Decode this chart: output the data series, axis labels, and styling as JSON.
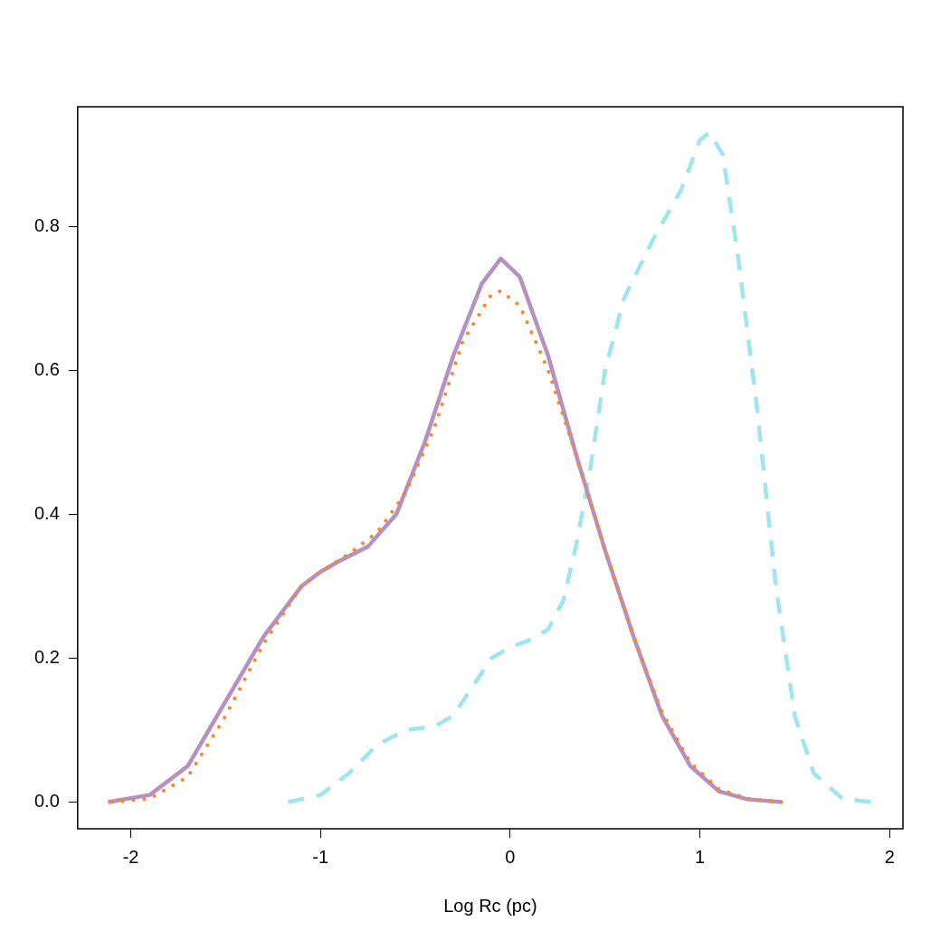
{
  "chart_data": {
    "type": "line",
    "xlabel": "Log Rc (pc)",
    "xlim": [
      -2.28,
      2.07
    ],
    "ylim": [
      -0.037,
      0.966
    ],
    "xticks": [
      -2,
      -1,
      0,
      1,
      2
    ],
    "yticks": [
      {
        "value": 0,
        "label": "0.0"
      },
      {
        "value": 0.2,
        "label": "0.2"
      },
      {
        "value": 0.4,
        "label": "0.4"
      },
      {
        "value": 0.6,
        "label": "0.6"
      },
      {
        "value": 0.8,
        "label": "0.8"
      }
    ],
    "grid": false,
    "legend": false,
    "marker": "none",
    "series": [
      {
        "color": "#f5872e",
        "line_style": "dotted",
        "x": [
          -2.1,
          -1.9,
          -1.7,
          -1.5,
          -1.3,
          -1.1,
          -1.0,
          -0.85,
          -0.7,
          -0.55,
          -0.4,
          -0.25,
          -0.1,
          -0.05,
          0.05,
          0.2,
          0.35,
          0.5,
          0.65,
          0.8,
          0.95,
          1.1,
          1.25,
          1.43
        ],
        "values": [
          0,
          0.005,
          0.035,
          0.12,
          0.22,
          0.3,
          0.32,
          0.345,
          0.375,
          0.43,
          0.52,
          0.64,
          0.705,
          0.71,
          0.69,
          0.6,
          0.48,
          0.35,
          0.23,
          0.125,
          0.055,
          0.018,
          0.005,
          0
        ]
      },
      {
        "color": "#b491c1",
        "line_style": "solid",
        "x": [
          -2.12,
          -1.9,
          -1.7,
          -1.5,
          -1.3,
          -1.1,
          -1.0,
          -0.9,
          -0.75,
          -0.6,
          -0.45,
          -0.3,
          -0.15,
          -0.05,
          0.05,
          0.2,
          0.35,
          0.5,
          0.65,
          0.8,
          0.95,
          1.1,
          1.25,
          1.43
        ],
        "values": [
          0,
          0.01,
          0.05,
          0.14,
          0.23,
          0.3,
          0.32,
          0.335,
          0.355,
          0.4,
          0.5,
          0.62,
          0.72,
          0.755,
          0.73,
          0.62,
          0.48,
          0.35,
          0.23,
          0.12,
          0.05,
          0.015,
          0.004,
          0
        ]
      },
      {
        "color": "#9fe5ef",
        "line_style": "dashed",
        "x": [
          -1.17,
          -1.0,
          -0.85,
          -0.7,
          -0.55,
          -0.4,
          -0.3,
          -0.2,
          -0.1,
          0,
          0.1,
          0.2,
          0.28,
          0.35,
          0.42,
          0.5,
          0.6,
          0.75,
          0.9,
          1.0,
          1.05,
          1.12,
          1.2,
          1.3,
          1.4,
          1.5,
          1.6,
          1.75,
          1.9
        ],
        "values": [
          0,
          0.01,
          0.04,
          0.08,
          0.1,
          0.105,
          0.12,
          0.16,
          0.2,
          0.215,
          0.225,
          0.24,
          0.28,
          0.36,
          0.46,
          0.6,
          0.7,
          0.78,
          0.85,
          0.92,
          0.93,
          0.9,
          0.76,
          0.55,
          0.3,
          0.12,
          0.04,
          0.005,
          0
        ]
      }
    ]
  }
}
